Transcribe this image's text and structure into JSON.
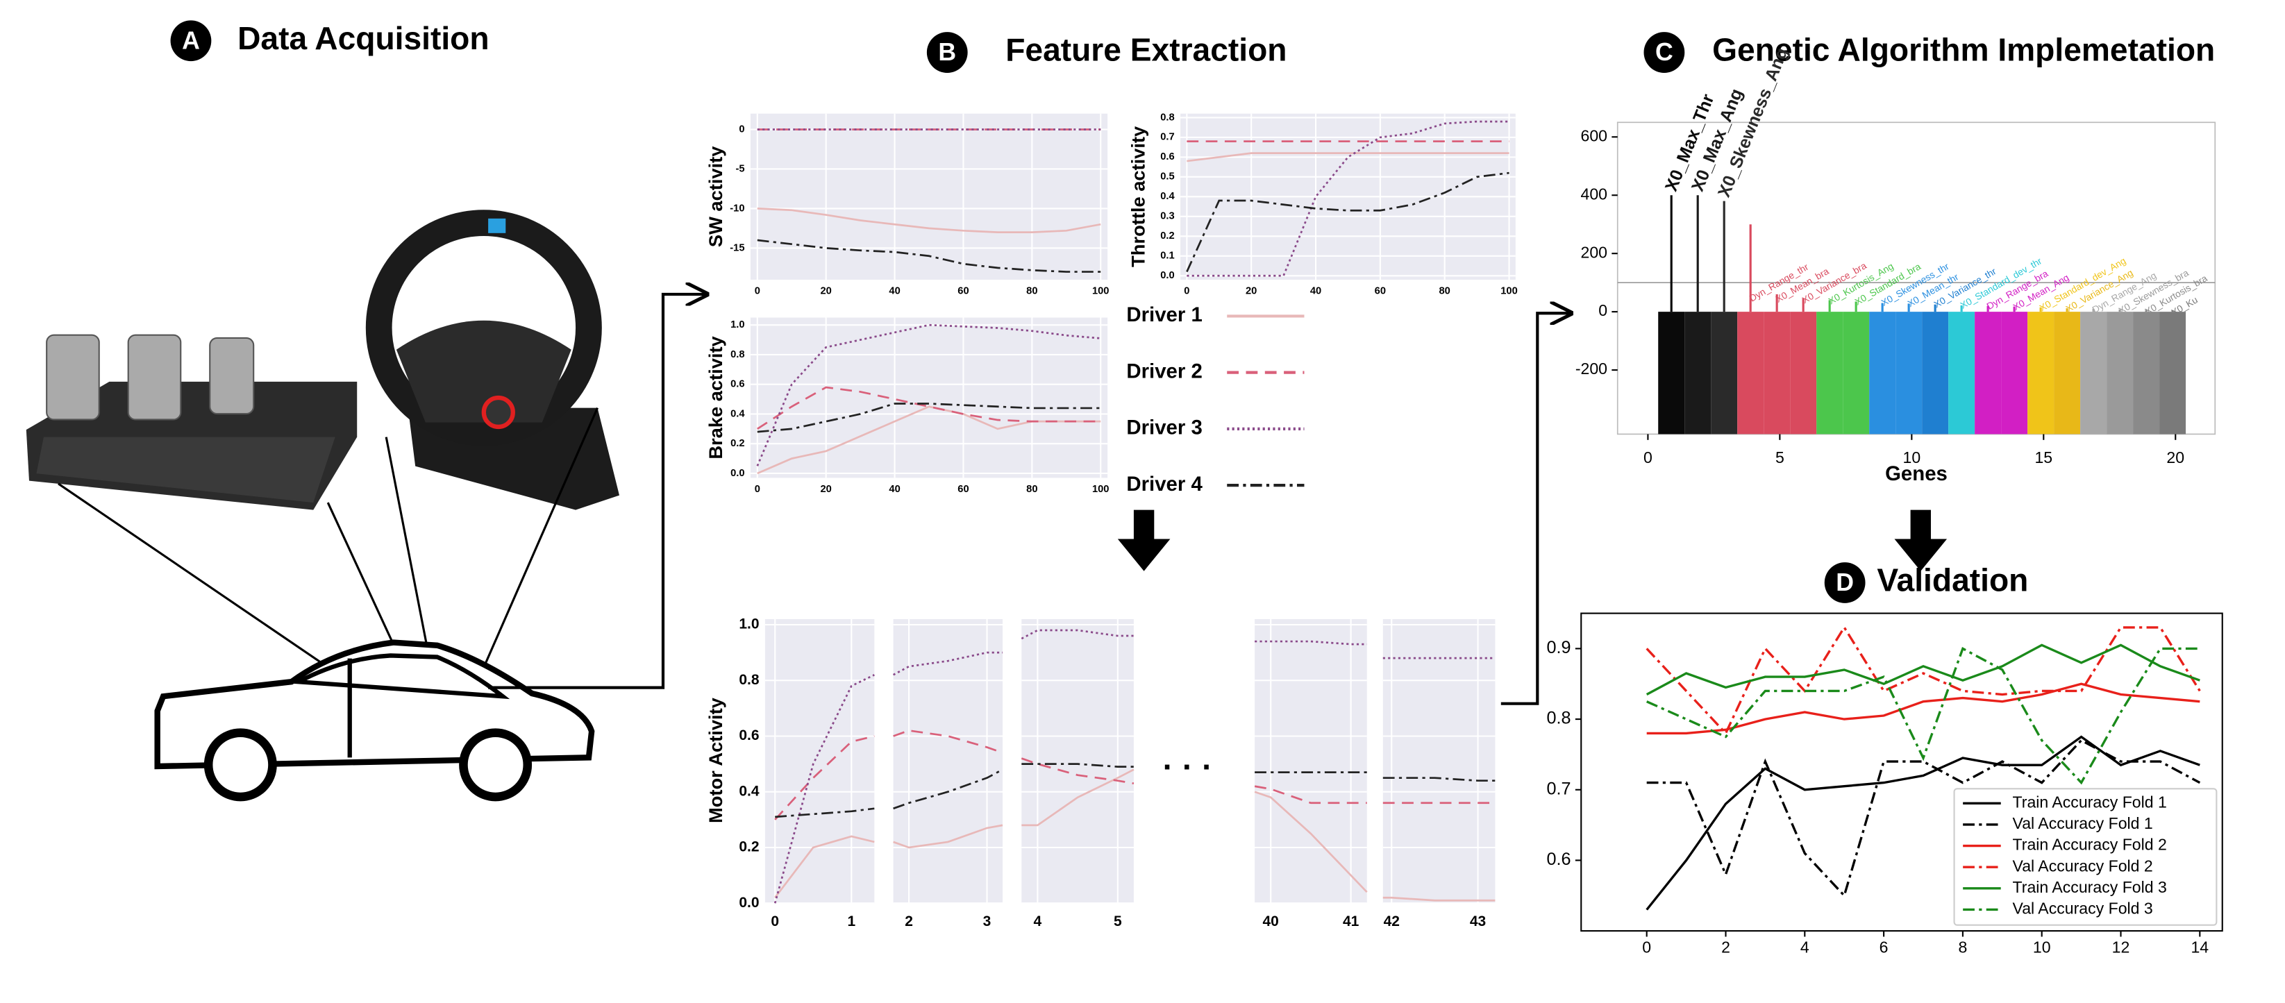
{
  "panels": [
    {
      "badge": "A",
      "title": "Data Acquisition"
    },
    {
      "badge": "B",
      "title": "Feature Extraction"
    },
    {
      "badge": "C",
      "title": "Genetic Algorithm Implemetation"
    },
    {
      "badge": "D",
      "title": "Validation"
    }
  ],
  "legend": [
    {
      "name": "Driver 1",
      "color": "#e8b8b8",
      "dash": "solid"
    },
    {
      "name": "Driver 2",
      "color": "#d9607a",
      "dash": "dashed"
    },
    {
      "name": "Driver 3",
      "color": "#8a4a8a",
      "dash": "dotted"
    },
    {
      "name": "Driver 4",
      "color": "#222222",
      "dash": "dashdot"
    }
  ],
  "ellipsis": "· · ·",
  "chart_data": [
    {
      "type": "line",
      "ylabel": "SW activity",
      "x": [
        0,
        10,
        20,
        30,
        40,
        50,
        60,
        70,
        80,
        90,
        100
      ],
      "xlim": [
        -2,
        102
      ],
      "xticks": [
        0,
        20,
        40,
        60,
        80,
        100
      ],
      "ylim": [
        -19,
        2
      ],
      "yticks": [
        0,
        -5,
        -10,
        -15
      ],
      "grid": true,
      "series": [
        {
          "values": [
            -10,
            -10.2,
            -10.8,
            -11.5,
            -12,
            -12.5,
            -12.8,
            -13,
            -13,
            -12.8,
            -12
          ]
        },
        {
          "values": [
            0,
            0,
            0,
            0,
            0,
            0,
            0,
            0,
            0,
            0,
            0
          ]
        },
        {
          "values": [
            0,
            0,
            0,
            0,
            0,
            0,
            0,
            0,
            0,
            0,
            0
          ]
        },
        {
          "values": [
            -14,
            -14.5,
            -15,
            -15.3,
            -15.5,
            -16,
            -17,
            -17.5,
            -17.8,
            -18,
            -18
          ]
        }
      ]
    },
    {
      "type": "line",
      "ylabel": "Throttle activity",
      "x": [
        0,
        10,
        20,
        30,
        40,
        50,
        60,
        70,
        80,
        90,
        100
      ],
      "xlim": [
        -2,
        102
      ],
      "xticks": [
        0,
        20,
        40,
        60,
        80,
        100
      ],
      "ylim": [
        -0.02,
        0.82
      ],
      "yticks": [
        {
          "value": 0,
          "label": "0.0"
        },
        0.1,
        0.2,
        0.3,
        0.4,
        0.5,
        0.6,
        0.7,
        0.8
      ],
      "grid": true,
      "series": [
        {
          "values": [
            0.58,
            0.6,
            0.62,
            0.62,
            0.62,
            0.62,
            0.62,
            0.62,
            0.62,
            0.62,
            0.62
          ]
        },
        {
          "values": [
            0.68,
            0.68,
            0.68,
            0.68,
            0.68,
            0.68,
            0.68,
            0.68,
            0.68,
            0.68,
            0.68
          ]
        },
        {
          "values": [
            0,
            0,
            0,
            0,
            0.4,
            0.6,
            0.7,
            0.72,
            0.77,
            0.78,
            0.78
          ]
        },
        {
          "values": [
            0.02,
            0.38,
            0.38,
            0.36,
            0.34,
            0.33,
            0.33,
            0.36,
            0.42,
            0.5,
            0.52
          ]
        }
      ]
    },
    {
      "type": "line",
      "ylabel": "Brake activity",
      "x": [
        0,
        10,
        20,
        30,
        40,
        50,
        60,
        70,
        80,
        90,
        100
      ],
      "xlim": [
        -2,
        102
      ],
      "xticks": [
        0,
        20,
        40,
        60,
        80,
        100
      ],
      "ylim": [
        -0.03,
        1.05
      ],
      "yticks": [
        {
          "value": 0,
          "label": "0.0"
        },
        0.2,
        0.4,
        0.6,
        0.8,
        {
          "value": 1,
          "label": "1.0"
        }
      ],
      "grid": true,
      "series": [
        {
          "values": [
            0,
            0.1,
            0.15,
            0.25,
            0.35,
            0.45,
            0.4,
            0.3,
            0.35,
            0.35,
            0.35
          ]
        },
        {
          "values": [
            0.3,
            0.45,
            0.58,
            0.55,
            0.5,
            0.45,
            0.4,
            0.36,
            0.35,
            0.35,
            0.35
          ]
        },
        {
          "values": [
            0.05,
            0.6,
            0.85,
            0.9,
            0.95,
            1,
            0.99,
            0.98,
            0.96,
            0.93,
            0.91
          ]
        },
        {
          "values": [
            0.28,
            0.3,
            0.35,
            0.4,
            0.47,
            0.47,
            0.46,
            0.45,
            0.44,
            0.44,
            0.44
          ]
        }
      ]
    },
    {
      "type": "line",
      "ylabel": "Motor Activity",
      "x": [
        0,
        0.5,
        1,
        1.3,
        1.8,
        2,
        2.5,
        3,
        3.2,
        3.8,
        4,
        4.5,
        5,
        5.2,
        39.8,
        40,
        40.5,
        41,
        41.2,
        41.9,
        42,
        42.5,
        43,
        43.2
      ],
      "ylim": [
        0,
        1.02
      ],
      "yticks": [
        {
          "value": 0,
          "label": "0.0"
        },
        0.2,
        0.4,
        0.6,
        0.8,
        {
          "value": 1,
          "label": "1.0"
        }
      ],
      "grid": true,
      "subplots": [
        {
          "xlim": [
            -0.13,
            1.3
          ],
          "xticks": [
            0,
            1
          ]
        },
        {
          "xlim": [
            1.8,
            3.2
          ],
          "xticks": [
            2,
            3
          ]
        },
        {
          "xlim": [
            3.8,
            5.2
          ],
          "xticks": [
            4,
            5
          ]
        },
        {
          "xlim": [
            39.8,
            41.2
          ],
          "xticks": [
            40,
            41
          ]
        },
        {
          "xlim": [
            41.9,
            43.2
          ],
          "xticks": [
            42,
            43
          ]
        }
      ],
      "series": [
        {
          "values": [
            0.02,
            0.2,
            0.24,
            0.22,
            0.22,
            0.2,
            0.22,
            0.27,
            0.28,
            0.28,
            0.28,
            0.38,
            0.45,
            0.48,
            0.4,
            0.38,
            0.25,
            0.1,
            0.04,
            0.02,
            0.02,
            0.01,
            0.01,
            0.01
          ]
        },
        {
          "values": [
            0.3,
            0.45,
            0.58,
            0.6,
            0.6,
            0.62,
            0.6,
            0.56,
            0.54,
            0.52,
            0.5,
            0.46,
            0.44,
            0.43,
            0.42,
            0.41,
            0.36,
            0.36,
            0.36,
            0.36,
            0.36,
            0.36,
            0.36,
            0.36
          ]
        },
        {
          "values": [
            0,
            0.5,
            0.78,
            0.82,
            0.82,
            0.85,
            0.87,
            0.9,
            0.9,
            0.95,
            0.98,
            0.98,
            0.96,
            0.96,
            0.94,
            0.94,
            0.94,
            0.93,
            0.93,
            0.88,
            0.88,
            0.88,
            0.88,
            0.88
          ]
        },
        {
          "values": [
            0.31,
            0.32,
            0.33,
            0.34,
            0.34,
            0.36,
            0.4,
            0.45,
            0.48,
            0.5,
            0.5,
            0.5,
            0.49,
            0.49,
            0.47,
            0.47,
            0.47,
            0.47,
            0.47,
            0.45,
            0.45,
            0.45,
            0.44,
            0.44
          ]
        }
      ]
    },
    {
      "type": "bar",
      "xlabel": "Genes",
      "xlim": [
        -1.15,
        21.5
      ],
      "xticks": [
        0,
        5,
        10,
        15,
        20
      ],
      "ylim": [
        -420,
        650
      ],
      "yticks": [
        -200,
        0,
        200,
        400,
        600
      ],
      "threshold": 100,
      "x": [
        1,
        2,
        3,
        4,
        5,
        6,
        7,
        8,
        9,
        10,
        11,
        12,
        13,
        14,
        15,
        16,
        17,
        18,
        19,
        20
      ],
      "categories": [
        "X0_Max_Thr",
        "X0_Max_Ang",
        "X0_Skewness_Ang",
        "Dyn_Range_thr",
        "X0_Mean_bra",
        "X0_Variance_bra",
        "X0_Kurtosis_Ang",
        "X0_Standard_bra",
        "X0_Skewness_thr",
        "X0_Mean_thr",
        "X0_Variance_thr",
        "X0_Standard_dev_thr",
        "Dyn_Range_bra",
        "X0_Mean_Ang",
        "X0_Standard_dev_Ang",
        "X0_Variance_Ang",
        "Dyn_Range_Ang",
        "X0_Skewness_bra",
        "X0_Kurtosis_bra",
        "X0_Ku"
      ],
      "values": [
        400,
        400,
        380,
        300,
        60,
        45,
        40,
        35,
        30,
        28,
        25,
        22,
        20,
        18,
        15,
        12,
        10,
        8,
        6,
        5
      ],
      "colors": [
        "#0a0a0a",
        "#1a1a1a",
        "#2a2a2a",
        "#d94a5e",
        "#d94a5e",
        "#d94a5e",
        "#4cc64c",
        "#4cc64c",
        "#2a8fe0",
        "#2a8fe0",
        "#1f7fd0",
        "#2cc9d6",
        "#d21fc4",
        "#d21fc4",
        "#f0c419",
        "#e8b818",
        "#a8a8a8",
        "#9a9a9a",
        "#8a8a8a",
        "#7a7a7a"
      ]
    },
    {
      "type": "line",
      "x": [
        0,
        1,
        2,
        3,
        4,
        5,
        6,
        7,
        8,
        9,
        10,
        11,
        12,
        13,
        14
      ],
      "xlim": [
        -1.66,
        14.57
      ],
      "xticks": [
        0,
        2,
        4,
        6,
        8,
        10,
        12,
        14
      ],
      "ylim": [
        0.5,
        0.95
      ],
      "yticks": [
        0.6,
        0.7,
        0.8,
        0.9
      ],
      "legend": "lower right",
      "series": [
        {
          "name": "Train Accuracy Fold 1",
          "color": "#000000",
          "dash": "solid",
          "values": [
            0.53,
            0.6,
            0.68,
            0.73,
            0.7,
            0.705,
            0.71,
            0.72,
            0.745,
            0.735,
            0.735,
            0.775,
            0.735,
            0.755,
            0.735
          ]
        },
        {
          "name": "Val Accuracy Fold 1",
          "color": "#000000",
          "dash": "dashdot",
          "values": [
            0.71,
            0.71,
            0.58,
            0.74,
            0.61,
            0.55,
            0.74,
            0.74,
            0.71,
            0.74,
            0.71,
            0.77,
            0.74,
            0.74,
            0.71
          ]
        },
        {
          "name": "Train Accuracy Fold 2",
          "color": "#e8201a",
          "dash": "solid",
          "values": [
            0.78,
            0.78,
            0.785,
            0.8,
            0.81,
            0.8,
            0.805,
            0.825,
            0.83,
            0.825,
            0.835,
            0.85,
            0.835,
            0.83,
            0.825
          ]
        },
        {
          "name": "Val Accuracy Fold 2",
          "color": "#e8201a",
          "dash": "dashdot",
          "values": [
            0.9,
            0.84,
            0.78,
            0.9,
            0.84,
            0.93,
            0.84,
            0.865,
            0.84,
            0.835,
            0.84,
            0.84,
            0.93,
            0.93,
            0.84
          ]
        },
        {
          "name": "Train Accuracy Fold 3",
          "color": "#1a8a1a",
          "dash": "solid",
          "values": [
            0.835,
            0.865,
            0.845,
            0.86,
            0.86,
            0.87,
            0.85,
            0.875,
            0.855,
            0.875,
            0.905,
            0.88,
            0.905,
            0.875,
            0.855
          ]
        },
        {
          "name": "Val Accuracy Fold 3",
          "color": "#1a8a1a",
          "dash": "dashdot",
          "values": [
            0.825,
            0.8,
            0.775,
            0.84,
            0.84,
            0.84,
            0.86,
            0.745,
            0.9,
            0.87,
            0.77,
            0.71,
            0.81,
            0.9,
            0.9
          ]
        }
      ]
    }
  ]
}
